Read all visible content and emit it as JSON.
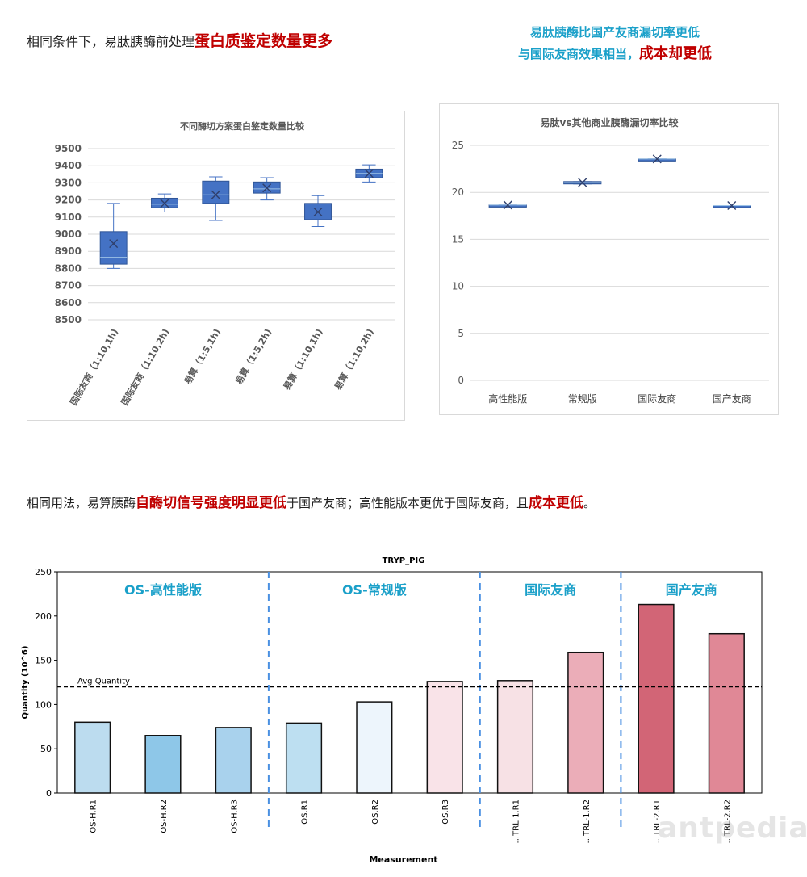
{
  "headings": {
    "top_left_prefix": "相同条件下，易肽胰酶前处理",
    "top_left_highlight": "蛋白质鉴定数量更多",
    "top_right_line1": "易肽胰酶比国产友商漏切率更低",
    "top_right_line2_prefix": "与国际友商效果相当，",
    "top_right_line2_highlight": "成本却更低",
    "bottom_p1": "相同用法，易算胰酶",
    "bottom_h1": "自酶切信号强度明显更低",
    "bottom_p2": "于国产友商；高性能版本更优于国际友商，且",
    "bottom_h2": "成本更低",
    "bottom_p3": "。"
  },
  "watermark": "antpedia",
  "colors": {
    "box_fill": "#4472c4",
    "box_edge": "#2f5597",
    "highlight": "#c00000",
    "teal": "#1aa0c9"
  },
  "chart_data": [
    {
      "type": "box",
      "title": "不同酶切方案蛋白鉴定数量比较",
      "ylim": [
        8500,
        9500
      ],
      "yticks": [
        8500,
        8600,
        8700,
        8800,
        8900,
        9000,
        9100,
        9200,
        9300,
        9400,
        9500
      ],
      "grid": true,
      "categories": [
        "国际友商（1:10,1h)",
        "国际友商（1:10,2h)",
        "易算（1:5,1h)",
        "易算（1:5,2h)",
        "易算（1:10,1h)",
        "易算（1:10,2h)"
      ],
      "boxes": [
        {
          "min": 8800,
          "q1": 8825,
          "median": 8865,
          "mean": 8945,
          "q3": 9015,
          "max": 9180
        },
        {
          "min": 9130,
          "q1": 9155,
          "median": 9175,
          "mean": 9180,
          "q3": 9210,
          "max": 9235
        },
        {
          "min": 9080,
          "q1": 9180,
          "median": 9230,
          "mean": 9230,
          "q3": 9310,
          "max": 9335
        },
        {
          "min": 9200,
          "q1": 9240,
          "median": 9265,
          "mean": 9270,
          "q3": 9305,
          "max": 9330
        },
        {
          "min": 9045,
          "q1": 9085,
          "median": 9130,
          "mean": 9130,
          "q3": 9180,
          "max": 9225
        },
        {
          "min": 9305,
          "q1": 9330,
          "median": 9355,
          "mean": 9355,
          "q3": 9380,
          "max": 9405
        }
      ]
    },
    {
      "type": "box",
      "title": "易肽vs其他商业胰酶漏切率比较",
      "ylim": [
        0,
        25
      ],
      "yticks": [
        0,
        5,
        10,
        15,
        20,
        25
      ],
      "grid": true,
      "categories": [
        "高性能版",
        "常规版",
        "国际友商",
        "国产友商"
      ],
      "boxes": [
        {
          "min": 18.65,
          "q1": 18.65,
          "median": 18.65,
          "mean": 18.65,
          "q3": 18.65,
          "max": 18.65
        },
        {
          "min": 20.9,
          "q1": 20.9,
          "median": 21.05,
          "mean": 21.05,
          "q3": 21.15,
          "max": 21.15
        },
        {
          "min": 23.55,
          "q1": 23.55,
          "median": 23.55,
          "mean": 23.55,
          "q3": 23.55,
          "max": 23.55
        },
        {
          "min": 18.6,
          "q1": 18.6,
          "median": 18.6,
          "mean": 18.6,
          "q3": 18.6,
          "max": 18.6
        }
      ]
    },
    {
      "type": "bar",
      "title": "TRYP_PIG",
      "xlabel": "Measurement",
      "ylabel": "Quantity (10^6)",
      "ylim": [
        0,
        250
      ],
      "yticks": [
        0,
        50,
        100,
        150,
        200,
        250
      ],
      "categories": [
        "OS-H.R1",
        "OS-H.R2",
        "OS-H.R3",
        "OS.R1",
        "OS.R2",
        "OS.R3",
        "...TRL-1.R1",
        "...TRL-1.R2",
        "...TRL-2.R1",
        "...TRL-2.R2"
      ],
      "values": [
        80,
        65,
        74,
        79,
        103,
        126,
        127,
        159,
        213,
        180
      ],
      "bar_colors": [
        "#bcdcef",
        "#8ec7e8",
        "#a9d2ed",
        "#bddff1",
        "#edf5fc",
        "#f9e3e8",
        "#f7e1e5",
        "#ebadb8",
        "#d26576",
        "#e08896"
      ],
      "reference_line": {
        "label": "Avg Quantity",
        "value": 120
      },
      "groups": [
        {
          "label": "OS-高性能版",
          "start": 0,
          "end": 2
        },
        {
          "label": "OS-常规版",
          "start": 3,
          "end": 5
        },
        {
          "label": "国际友商",
          "start": 6,
          "end": 7
        },
        {
          "label": "国产友商",
          "start": 8,
          "end": 9
        }
      ]
    }
  ]
}
